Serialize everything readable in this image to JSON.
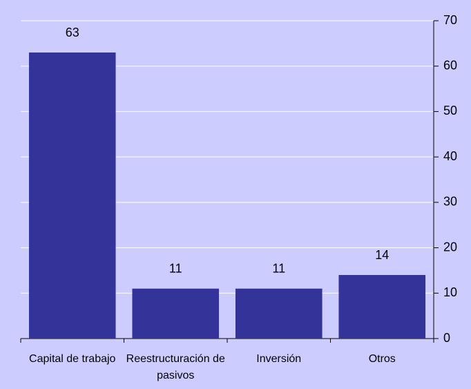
{
  "chart_data": {
    "type": "bar",
    "categories": [
      "Capital de trabajo",
      "Reestructuración de pasivos",
      "Inversión",
      "Otros"
    ],
    "values": [
      63,
      11,
      11,
      14
    ],
    "color": "#333399",
    "ylim": [
      0,
      70
    ],
    "yticks": [
      0,
      10,
      20,
      30,
      40,
      50,
      60,
      70
    ],
    "grid": true,
    "y_axis_side": "right"
  }
}
